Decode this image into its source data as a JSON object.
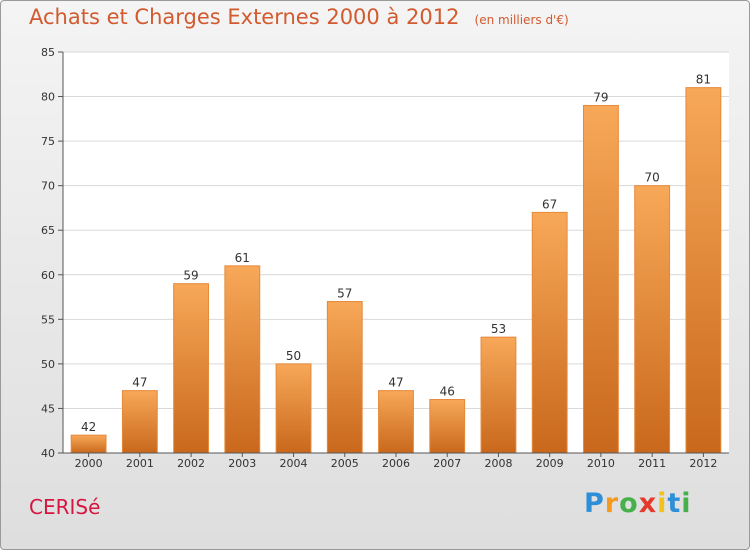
{
  "header": {
    "title": "Achats et Charges Externes 2000 à 2012",
    "unit": "(en milliers d'€)"
  },
  "commune": "CERISé",
  "brand": {
    "letters": [
      {
        "ch": "P",
        "color": "#2d8fd8"
      },
      {
        "ch": "r",
        "color": "#f39a1f"
      },
      {
        "ch": "o",
        "color": "#46b04a"
      },
      {
        "ch": "x",
        "color": "#e43a2c"
      },
      {
        "ch": "i",
        "color": "#f2c21b"
      },
      {
        "ch": "t",
        "color": "#2d8fd8"
      },
      {
        "ch": "i",
        "color": "#46b04a"
      }
    ]
  },
  "chart_data": {
    "type": "bar",
    "title": "Achats et Charges Externes 2000 à 2012",
    "ylim": [
      40,
      85
    ],
    "yticks": [
      40,
      45,
      50,
      55,
      60,
      65,
      70,
      75,
      80,
      85
    ],
    "grid": true,
    "categories": [
      "2000",
      "2001",
      "2002",
      "2003",
      "2004",
      "2005",
      "2006",
      "2007",
      "2008",
      "2009",
      "2010",
      "2011",
      "2012"
    ],
    "values": [
      42,
      47,
      59,
      61,
      50,
      57,
      47,
      46,
      53,
      67,
      79,
      70,
      81
    ],
    "colors": {
      "bar_top": "#f7a858",
      "bar_bottom": "#c9681c",
      "bar_edge": "#e6893a"
    }
  }
}
